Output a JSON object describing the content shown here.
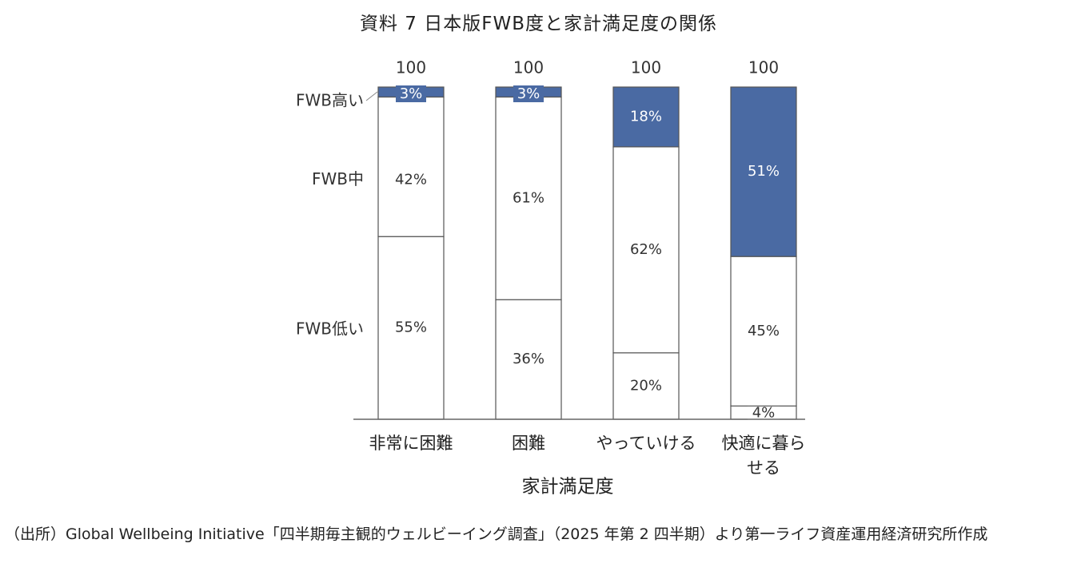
{
  "title": "資料 7  日本版FWB度と家計満足度の関係",
  "source_note": "（出所）Global Wellbeing Initiative「四半期毎主観的ウェルビーイング調査」（2025 年第 2 四半期）より第一ライフ資産運用経済研究所作成",
  "colors": {
    "fwb_high": "#4a6aa3",
    "fwb_mid": "#ffffff",
    "fwb_low": "#ffffff",
    "border": "#555555"
  },
  "chart_data": {
    "type": "bar",
    "stacked": true,
    "percent": true,
    "categories": [
      "非常に困難",
      "困難",
      "やっていける",
      "快適に暮ら\nせる"
    ],
    "totals": [
      100,
      100,
      100,
      100
    ],
    "xlabel": "家計満足度",
    "ylabel": "",
    "ylim": [
      0,
      100
    ],
    "grid": false,
    "series": [
      {
        "name": "FWB低い",
        "values": [
          55,
          36,
          20,
          4
        ],
        "labels": [
          "55%",
          "36%",
          "20%",
          "4%"
        ]
      },
      {
        "name": "FWB中",
        "values": [
          42,
          61,
          62,
          45
        ],
        "labels": [
          "42%",
          "61%",
          "62%",
          "45%"
        ]
      },
      {
        "name": "FWB高い",
        "values": [
          3,
          3,
          18,
          51
        ],
        "labels": [
          "3%",
          "3%",
          "18%",
          "51%"
        ]
      }
    ]
  }
}
